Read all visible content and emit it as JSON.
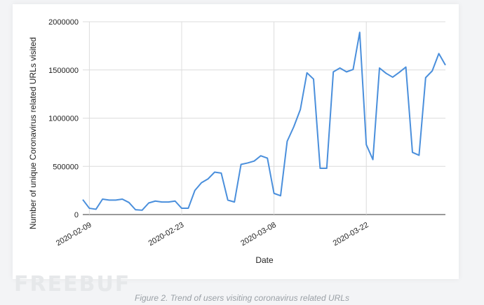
{
  "chart_data": {
    "type": "line",
    "title": "",
    "xlabel": "Date",
    "ylabel": "Number of unique Coronavirus related URLs visited",
    "ylim": [
      0,
      2000000
    ],
    "y_ticks": [
      "0",
      "500000",
      "1000000",
      "1500000",
      "2000000"
    ],
    "x_tick_labels": [
      "2020-02-09",
      "2020-02-23",
      "2020-03-08",
      "2020-03-22"
    ],
    "grid": "on",
    "line_color": "#4a8fdc",
    "series": [
      {
        "x": [
          "2020-02-08",
          "2020-02-09",
          "2020-02-10",
          "2020-02-11",
          "2020-02-12",
          "2020-02-13",
          "2020-02-14",
          "2020-02-15",
          "2020-02-16",
          "2020-02-17",
          "2020-02-18",
          "2020-02-19",
          "2020-02-20",
          "2020-02-21",
          "2020-02-22",
          "2020-02-23",
          "2020-02-24",
          "2020-02-25",
          "2020-02-26",
          "2020-02-27",
          "2020-02-28",
          "2020-02-29",
          "2020-03-01",
          "2020-03-02",
          "2020-03-03",
          "2020-03-04",
          "2020-03-05",
          "2020-03-06",
          "2020-03-07",
          "2020-03-08",
          "2020-03-09",
          "2020-03-10",
          "2020-03-11",
          "2020-03-12",
          "2020-03-13",
          "2020-03-14",
          "2020-03-15",
          "2020-03-16",
          "2020-03-17",
          "2020-03-18",
          "2020-03-19",
          "2020-03-20",
          "2020-03-21",
          "2020-03-22",
          "2020-03-23",
          "2020-03-24",
          "2020-03-25",
          "2020-03-26",
          "2020-03-27",
          "2020-03-28",
          "2020-03-29",
          "2020-03-30",
          "2020-03-31",
          "2020-04-01",
          "2020-04-02",
          "2020-04-03"
        ],
        "values": [
          155000,
          65000,
          55000,
          160000,
          150000,
          150000,
          160000,
          125000,
          50000,
          45000,
          120000,
          140000,
          130000,
          130000,
          140000,
          65000,
          65000,
          250000,
          330000,
          370000,
          440000,
          430000,
          150000,
          130000,
          520000,
          535000,
          555000,
          610000,
          585000,
          220000,
          195000,
          760000,
          910000,
          1090000,
          1470000,
          1405000,
          480000,
          480000,
          1480000,
          1520000,
          1480000,
          1505000,
          1890000,
          725000,
          570000,
          1520000,
          1465000,
          1425000,
          1475000,
          1530000,
          645000,
          615000,
          1420000,
          1490000,
          1670000,
          1550000
        ]
      }
    ]
  },
  "caption": "Figure 2. Trend of users visiting coronavirus related URLs",
  "watermark": "FREEBUF"
}
